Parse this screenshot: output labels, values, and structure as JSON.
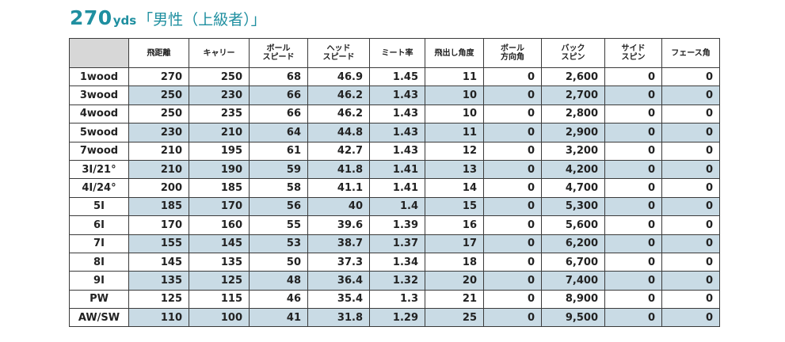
{
  "title": {
    "main": "270",
    "unit": "yds",
    "subtitle": "「男性（上級者）」"
  },
  "table": {
    "headers": [
      "",
      "飛距離",
      "キャリー",
      "ボール\nスピード",
      "ヘッド\nスピード",
      "ミート率",
      "飛出し角度",
      "ボール\n方向角",
      "バック\nスピン",
      "サイド\nスピン",
      "フェース角"
    ],
    "rows": [
      [
        "1wood",
        "270",
        "250",
        "68",
        "46.9",
        "1.45",
        "11",
        "0",
        "2,600",
        "0",
        "0"
      ],
      [
        "3wood",
        "250",
        "230",
        "66",
        "46.2",
        "1.43",
        "10",
        "0",
        "2,700",
        "0",
        "0"
      ],
      [
        "4wood",
        "250",
        "235",
        "66",
        "46.2",
        "1.43",
        "10",
        "0",
        "2,800",
        "0",
        "0"
      ],
      [
        "5wood",
        "230",
        "210",
        "64",
        "44.8",
        "1.43",
        "11",
        "0",
        "2,900",
        "0",
        "0"
      ],
      [
        "7wood",
        "210",
        "195",
        "61",
        "42.7",
        "1.43",
        "12",
        "0",
        "3,200",
        "0",
        "0"
      ],
      [
        "3I/21°",
        "210",
        "190",
        "59",
        "41.8",
        "1.41",
        "13",
        "0",
        "4,200",
        "0",
        "0"
      ],
      [
        "4I/24°",
        "200",
        "185",
        "58",
        "41.1",
        "1.41",
        "14",
        "0",
        "4,700",
        "0",
        "0"
      ],
      [
        "5I",
        "185",
        "170",
        "56",
        "40",
        "1.4",
        "15",
        "0",
        "5,300",
        "0",
        "0"
      ],
      [
        "6I",
        "170",
        "160",
        "55",
        "39.6",
        "1.39",
        "16",
        "0",
        "5,600",
        "0",
        "0"
      ],
      [
        "7I",
        "155",
        "145",
        "53",
        "38.7",
        "1.37",
        "17",
        "0",
        "6,200",
        "0",
        "0"
      ],
      [
        "8I",
        "145",
        "135",
        "50",
        "37.3",
        "1.34",
        "18",
        "0",
        "6,700",
        "0",
        "0"
      ],
      [
        "9I",
        "135",
        "125",
        "48",
        "36.4",
        "1.32",
        "20",
        "0",
        "7,400",
        "0",
        "0"
      ],
      [
        "PW",
        "125",
        "115",
        "46",
        "35.4",
        "1.3",
        "21",
        "0",
        "8,900",
        "0",
        "0"
      ],
      [
        "AW/SW",
        "110",
        "100",
        "41",
        "31.8",
        "1.29",
        "25",
        "0",
        "9,500",
        "0",
        "0"
      ]
    ]
  },
  "colors": {
    "accent": "#1f8fa0",
    "alt_row": "#c9dbe5",
    "corner_cell": "#d7d7d7"
  }
}
